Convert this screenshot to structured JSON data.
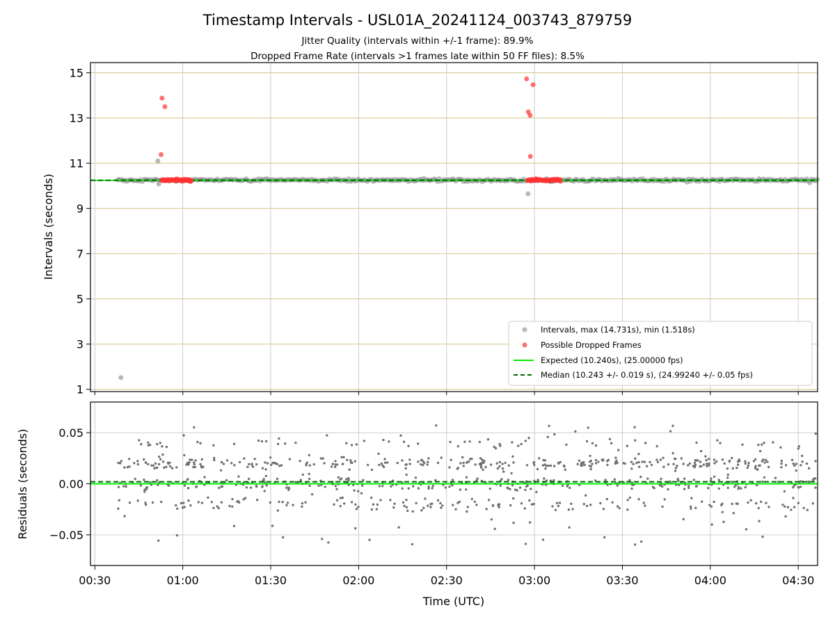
{
  "chart_data": [
    {
      "type": "scatter",
      "title": "Timestamp Intervals - USL01A_20241124_003743_879759",
      "subtitle_lines": [
        "Jitter Quality (intervals within +/-1 frame): 89.9%",
        "Dropped Frame Rate (intervals >1 frames late within 50 FF files): 8.5%"
      ],
      "xlabel": "",
      "ylabel": "Intervals (seconds)",
      "xlim_hours": [
        0.475,
        4.61
      ],
      "ylim": [
        0.9,
        15.45
      ],
      "yticks": [
        1,
        3,
        5,
        7,
        9,
        11,
        13,
        15
      ],
      "ytick_labels": [
        "1",
        "3",
        "5",
        "7",
        "9",
        "11",
        "13",
        "15"
      ],
      "grid": true,
      "legend_position": "lower-right",
      "legend": [
        "Intervals, max (14.731s), min (1.518s)",
        "Possible Dropped Frames",
        "Expected (10.240s), (25.00000 fps)",
        "Median (10.243 +/- 0.019 s), (24.99240 +/- 0.05 fps)"
      ],
      "expected_interval": 10.24,
      "median_interval": 10.243,
      "band_start_hours": 0.63,
      "band_end_hours": 4.61,
      "band_value": 10.25,
      "intervals_outliers": [
        {
          "x_hours": 0.6483,
          "y": 1.518
        },
        {
          "x_hours": 0.8583,
          "y": 11.1
        },
        {
          "x_hours": 0.8633,
          "y": 10.08
        },
        {
          "x_hours": 2.9633,
          "y": 9.65
        }
      ],
      "dropped_frames": [
        {
          "x_hours": 0.8817,
          "y": 13.88
        },
        {
          "x_hours": 0.8983,
          "y": 13.5
        },
        {
          "x_hours": 0.8767,
          "y": 11.38
        },
        {
          "x_hours": 2.955,
          "y": 14.73
        },
        {
          "x_hours": 2.9917,
          "y": 14.47
        },
        {
          "x_hours": 2.965,
          "y": 13.27
        },
        {
          "x_hours": 2.975,
          "y": 13.12
        },
        {
          "x_hours": 2.9767,
          "y": 11.3
        }
      ],
      "dropped_cluster_ranges_hours": [
        [
          0.88,
          1.05
        ],
        [
          2.96,
          3.15
        ]
      ],
      "dropped_cluster_value": 10.25,
      "colors": {
        "intervals": "#888888",
        "dropped": "#ff3333",
        "expected": "#00ee00",
        "median": "#006400",
        "grid_horizontal": "#d4c48a",
        "grid_vertical": "#cccccc"
      }
    },
    {
      "type": "scatter",
      "xlabel": "Time (UTC)",
      "ylabel": "Residuals (seconds)",
      "xlim_hours": [
        0.475,
        4.61
      ],
      "ylim": [
        -0.08,
        0.08
      ],
      "yticks": [
        -0.05,
        0.0,
        0.05
      ],
      "ytick_labels": [
        "−0.05",
        "0.00",
        "0.05"
      ],
      "xticks_hours": [
        0.5,
        1.0,
        1.5,
        2.0,
        2.5,
        3.0,
        3.5,
        4.0,
        4.5
      ],
      "xtick_labels": [
        "00:30",
        "01:00",
        "01:30",
        "02:00",
        "02:30",
        "03:00",
        "03:30",
        "04:00",
        "04:30"
      ],
      "grid": true,
      "expected_residual": 0.0,
      "median_residual": 0.002,
      "residual_level_means": [
        0.02,
        0.0,
        -0.02,
        0.04
      ],
      "residual_level_weights": [
        0.36,
        0.28,
        0.16,
        0.08
      ],
      "residual_spread": 0.06,
      "residual_x_range_hours": [
        0.63,
        4.61
      ],
      "residual_points": 900,
      "colors": {
        "residuals": "#707070",
        "expected": "#00ee00",
        "median": "#006400",
        "grid": "#cccccc"
      }
    }
  ]
}
